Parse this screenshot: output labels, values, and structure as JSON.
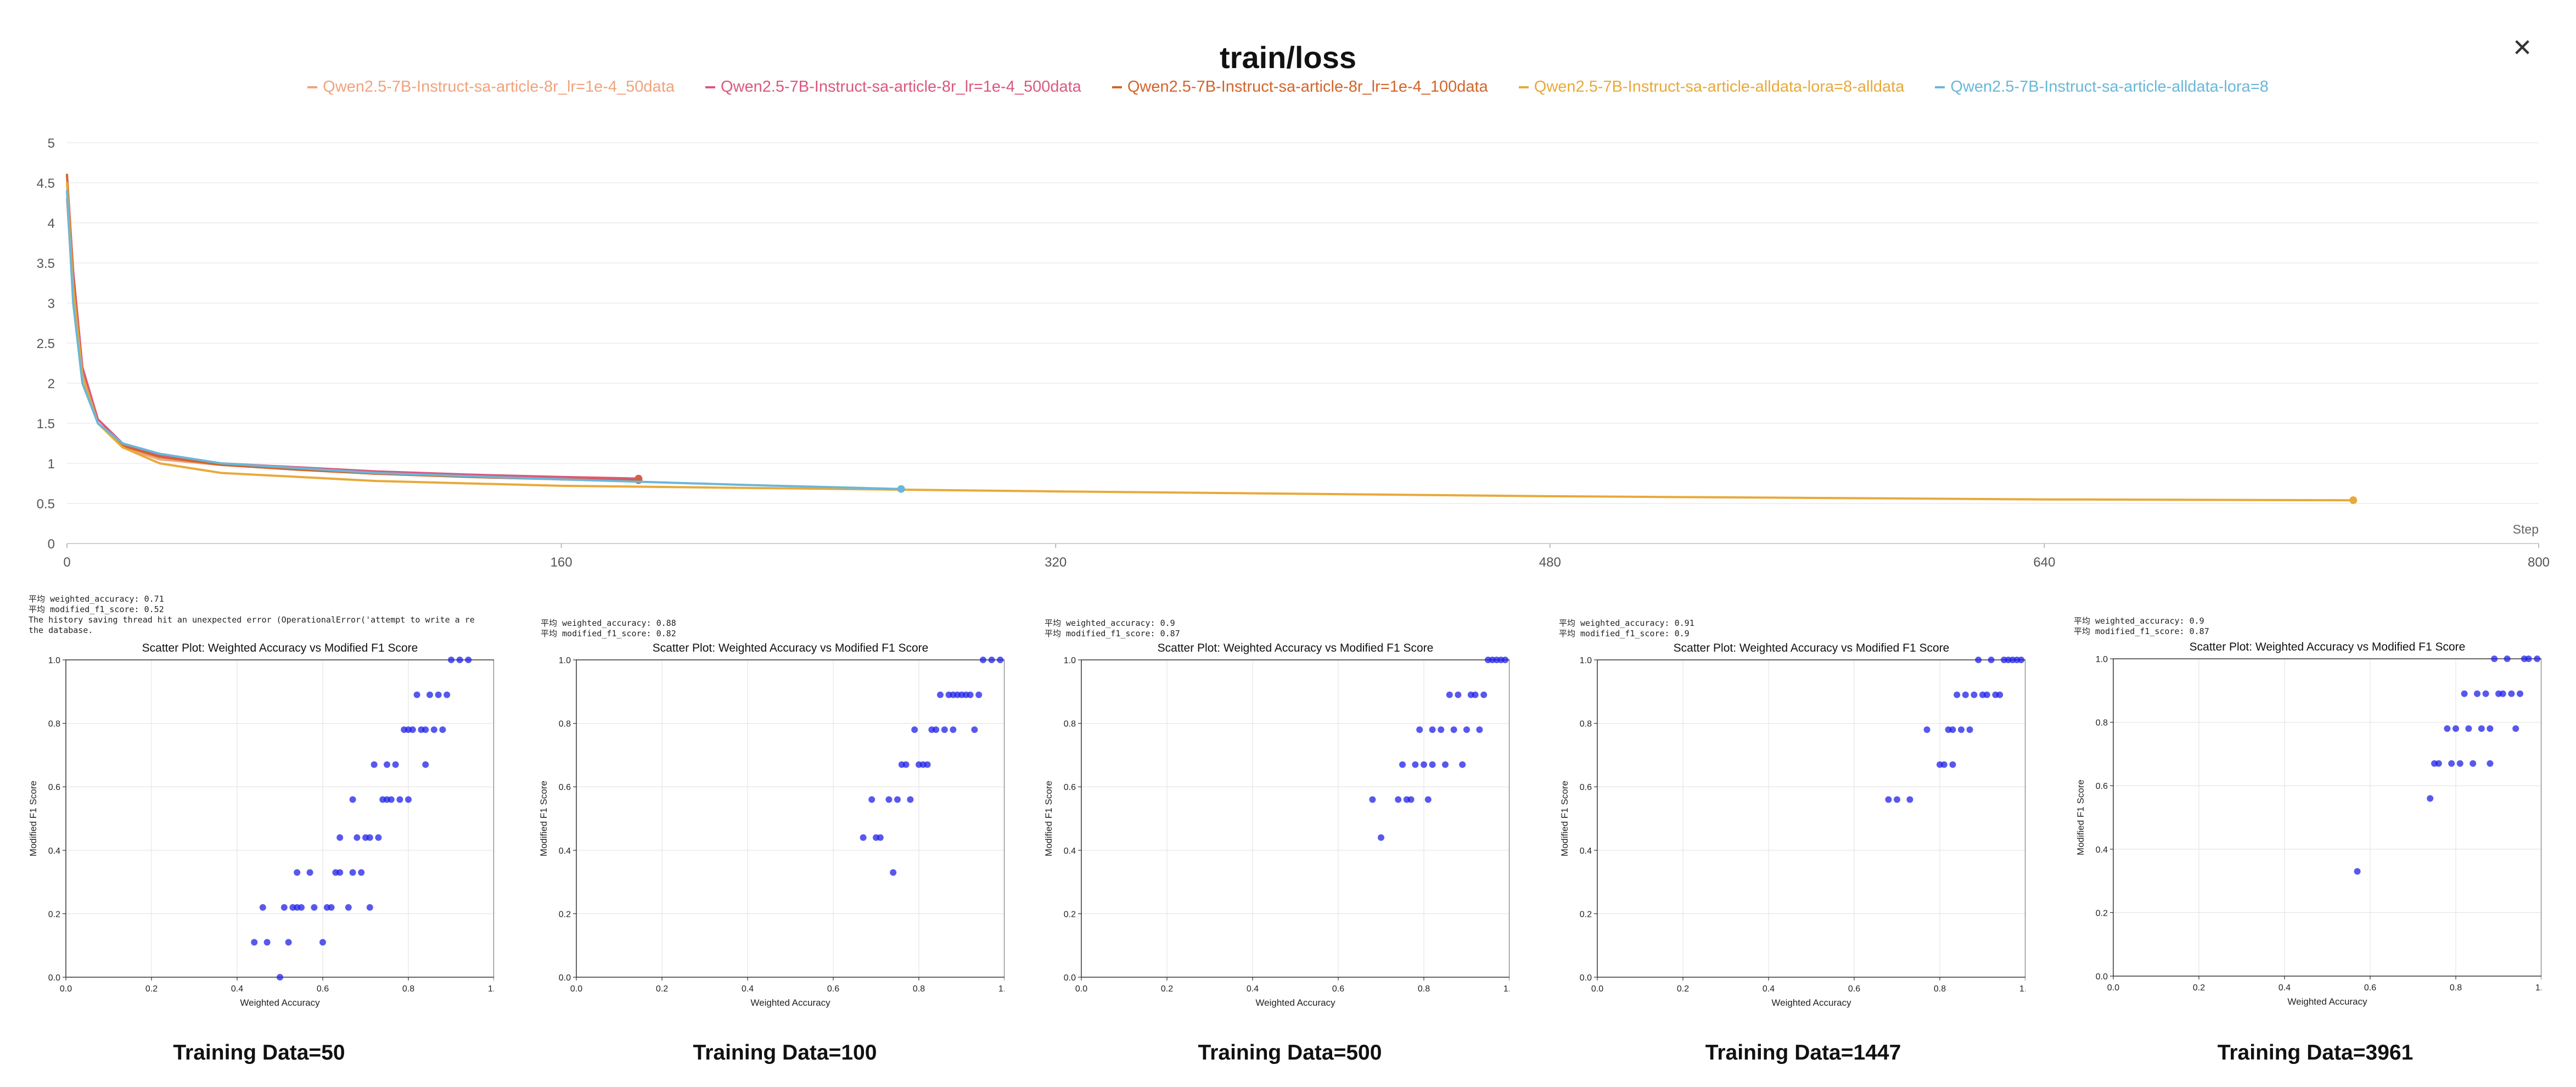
{
  "header": {
    "title": "train/loss",
    "close_icon": "close-icon"
  },
  "legend": [
    {
      "label": "Qwen2.5-7B-Instruct-sa-article-8r_lr=1e-4_50data",
      "color": "#f0a37c"
    },
    {
      "label": "Qwen2.5-7B-Instruct-sa-article-8r_lr=1e-4_500data",
      "color": "#d9597e"
    },
    {
      "label": "Qwen2.5-7B-Instruct-sa-article-8r_lr=1e-4_100data",
      "color": "#d2652b"
    },
    {
      "label": "Qwen2.5-7B-Instruct-sa-article-alldata-lora=8-alldata",
      "color": "#e8a93a"
    },
    {
      "label": "Qwen2.5-7B-Instruct-sa-article-alldata-lora=8",
      "color": "#6ab7d8"
    }
  ],
  "chart_data": [
    {
      "type": "line",
      "title": "train/loss",
      "xlabel": "Step",
      "ylabel": "",
      "xlim": [
        0,
        800
      ],
      "ylim": [
        0,
        5
      ],
      "xticks": [
        "0",
        "160",
        "320",
        "480",
        "640",
        "800"
      ],
      "yticks": [
        "0",
        "0.5",
        "1",
        "1.5",
        "2",
        "2.5",
        "3",
        "3.5",
        "4",
        "4.5",
        "5"
      ],
      "grid": true,
      "legend_position": "top",
      "series": [
        {
          "name": "Qwen2.5-7B-Instruct-sa-article-8r_lr=1e-4_50data",
          "color": "#f0a37c",
          "x": [
            0,
            2,
            5,
            10,
            18,
            30,
            50,
            75,
            100,
            130,
            160,
            185
          ],
          "y": [
            4.3,
            3.1,
            2.1,
            1.5,
            1.2,
            1.05,
            0.98,
            0.93,
            0.88,
            0.84,
            0.82,
            0.8
          ]
        },
        {
          "name": "Qwen2.5-7B-Instruct-sa-article-8r_lr=1e-4_500data",
          "color": "#d9597e",
          "x": [
            0,
            2,
            5,
            10,
            18,
            30,
            50,
            75,
            100,
            130,
            160,
            185
          ],
          "y": [
            4.6,
            3.4,
            2.2,
            1.55,
            1.25,
            1.1,
            1.0,
            0.95,
            0.9,
            0.86,
            0.83,
            0.81
          ]
        },
        {
          "name": "Qwen2.5-7B-Instruct-sa-article-8r_lr=1e-4_100data",
          "color": "#d2652b",
          "x": [
            0,
            2,
            5,
            10,
            18,
            30,
            50,
            75,
            100,
            130,
            160,
            185
          ],
          "y": [
            4.6,
            3.3,
            2.1,
            1.5,
            1.22,
            1.08,
            0.98,
            0.92,
            0.87,
            0.83,
            0.8,
            0.79
          ]
        },
        {
          "name": "Qwen2.5-7B-Instruct-sa-article-alldata-lora=8-alldata",
          "color": "#e8a93a",
          "x": [
            0,
            2,
            5,
            10,
            18,
            30,
            50,
            100,
            160,
            250,
            320,
            400,
            480,
            560,
            640,
            740
          ],
          "y": [
            4.5,
            3.2,
            2.1,
            1.5,
            1.2,
            1.0,
            0.88,
            0.78,
            0.72,
            0.68,
            0.65,
            0.62,
            0.59,
            0.57,
            0.55,
            0.54
          ]
        },
        {
          "name": "Qwen2.5-7B-Instruct-sa-article-alldata-lora=8",
          "color": "#6ab7d8",
          "x": [
            0,
            2,
            5,
            10,
            18,
            30,
            50,
            100,
            160,
            220,
            270
          ],
          "y": [
            4.4,
            3.0,
            2.0,
            1.5,
            1.25,
            1.12,
            1.0,
            0.88,
            0.8,
            0.73,
            0.68
          ]
        }
      ]
    },
    {
      "type": "scatter",
      "title": "Scatter Plot: Weighted Accuracy vs Modified F1 Score",
      "xlabel": "Weighted Accuracy",
      "ylabel": "Modified F1 Score",
      "xlim": [
        0,
        1
      ],
      "ylim": [
        0,
        1
      ],
      "xticks": [
        "0.0",
        "0.2",
        "0.4",
        "0.6",
        "0.8",
        "1.0"
      ],
      "yticks": [
        "0.0",
        "0.2",
        "0.4",
        "0.6",
        "0.8",
        "1.0"
      ],
      "grid": true,
      "points": [
        [
          0.44,
          0.11
        ],
        [
          0.46,
          0.22
        ],
        [
          0.47,
          0.11
        ],
        [
          0.5,
          0.0
        ],
        [
          0.51,
          0.22
        ],
        [
          0.52,
          0.11
        ],
        [
          0.53,
          0.22
        ],
        [
          0.54,
          0.33
        ],
        [
          0.54,
          0.22
        ],
        [
          0.55,
          0.22
        ],
        [
          0.57,
          0.33
        ],
        [
          0.58,
          0.22
        ],
        [
          0.6,
          0.11
        ],
        [
          0.61,
          0.22
        ],
        [
          0.62,
          0.22
        ],
        [
          0.63,
          0.33
        ],
        [
          0.64,
          0.44
        ],
        [
          0.64,
          0.33
        ],
        [
          0.66,
          0.22
        ],
        [
          0.67,
          0.33
        ],
        [
          0.67,
          0.56
        ],
        [
          0.68,
          0.44
        ],
        [
          0.69,
          0.33
        ],
        [
          0.7,
          0.44
        ],
        [
          0.71,
          0.22
        ],
        [
          0.71,
          0.44
        ],
        [
          0.72,
          0.67
        ],
        [
          0.73,
          0.44
        ],
        [
          0.74,
          0.56
        ],
        [
          0.75,
          0.56
        ],
        [
          0.75,
          0.67
        ],
        [
          0.76,
          0.56
        ],
        [
          0.77,
          0.67
        ],
        [
          0.78,
          0.56
        ],
        [
          0.79,
          0.78
        ],
        [
          0.8,
          0.78
        ],
        [
          0.8,
          0.56
        ],
        [
          0.81,
          0.78
        ],
        [
          0.82,
          0.89
        ],
        [
          0.83,
          0.78
        ],
        [
          0.84,
          0.78
        ],
        [
          0.84,
          0.67
        ],
        [
          0.85,
          0.89
        ],
        [
          0.86,
          0.78
        ],
        [
          0.87,
          0.89
        ],
        [
          0.88,
          0.78
        ],
        [
          0.89,
          0.89
        ],
        [
          0.9,
          1.0
        ],
        [
          0.92,
          1.0
        ],
        [
          0.94,
          1.0
        ]
      ],
      "stats_text": "平均 weighted_accuracy: 0.71\n平均 modified_f1_score: 0.52\nThe history saving thread hit an unexpected error (OperationalError('attempt to write a re\nthe database.",
      "caption": "Training Data=50"
    },
    {
      "type": "scatter",
      "title": "Scatter Plot: Weighted Accuracy vs Modified F1 Score",
      "xlabel": "Weighted Accuracy",
      "ylabel": "Modified F1 Score",
      "xlim": [
        0,
        1
      ],
      "ylim": [
        0,
        1
      ],
      "xticks": [
        "0.0",
        "0.2",
        "0.4",
        "0.6",
        "0.8",
        "1.0"
      ],
      "yticks": [
        "0.0",
        "0.2",
        "0.4",
        "0.6",
        "0.8",
        "1.0"
      ],
      "grid": true,
      "points": [
        [
          0.67,
          0.44
        ],
        [
          0.69,
          0.56
        ],
        [
          0.7,
          0.44
        ],
        [
          0.71,
          0.44
        ],
        [
          0.73,
          0.56
        ],
        [
          0.74,
          0.33
        ],
        [
          0.75,
          0.56
        ],
        [
          0.76,
          0.67
        ],
        [
          0.77,
          0.67
        ],
        [
          0.78,
          0.56
        ],
        [
          0.79,
          0.78
        ],
        [
          0.8,
          0.67
        ],
        [
          0.81,
          0.67
        ],
        [
          0.82,
          0.67
        ],
        [
          0.83,
          0.78
        ],
        [
          0.84,
          0.78
        ],
        [
          0.85,
          0.89
        ],
        [
          0.86,
          0.78
        ],
        [
          0.87,
          0.89
        ],
        [
          0.88,
          0.78
        ],
        [
          0.88,
          0.89
        ],
        [
          0.89,
          0.89
        ],
        [
          0.9,
          0.89
        ],
        [
          0.91,
          0.89
        ],
        [
          0.92,
          0.89
        ],
        [
          0.93,
          0.78
        ],
        [
          0.94,
          0.89
        ],
        [
          0.95,
          1.0
        ],
        [
          0.97,
          1.0
        ],
        [
          0.99,
          1.0
        ]
      ],
      "stats_text": "平均 weighted_accuracy: 0.88\n平均 modified_f1_score: 0.82",
      "caption": "Training Data=100"
    },
    {
      "type": "scatter",
      "title": "Scatter Plot: Weighted Accuracy vs Modified F1 Score",
      "xlabel": "Weighted Accuracy",
      "ylabel": "Modified F1 Score",
      "xlim": [
        0,
        1
      ],
      "ylim": [
        0,
        1
      ],
      "xticks": [
        "0.0",
        "0.2",
        "0.4",
        "0.6",
        "0.8",
        "1.0"
      ],
      "yticks": [
        "0.0",
        "0.2",
        "0.4",
        "0.6",
        "0.8",
        "1.0"
      ],
      "grid": true,
      "points": [
        [
          0.68,
          0.56
        ],
        [
          0.7,
          0.44
        ],
        [
          0.74,
          0.56
        ],
        [
          0.75,
          0.67
        ],
        [
          0.76,
          0.56
        ],
        [
          0.77,
          0.56
        ],
        [
          0.78,
          0.67
        ],
        [
          0.79,
          0.78
        ],
        [
          0.8,
          0.67
        ],
        [
          0.81,
          0.56
        ],
        [
          0.82,
          0.67
        ],
        [
          0.82,
          0.78
        ],
        [
          0.84,
          0.78
        ],
        [
          0.85,
          0.67
        ],
        [
          0.86,
          0.89
        ],
        [
          0.87,
          0.78
        ],
        [
          0.88,
          0.89
        ],
        [
          0.89,
          0.67
        ],
        [
          0.9,
          0.78
        ],
        [
          0.91,
          0.89
        ],
        [
          0.92,
          0.89
        ],
        [
          0.93,
          0.78
        ],
        [
          0.94,
          0.89
        ],
        [
          0.95,
          1.0
        ],
        [
          0.96,
          1.0
        ],
        [
          0.97,
          1.0
        ],
        [
          0.98,
          1.0
        ],
        [
          0.99,
          1.0
        ]
      ],
      "stats_text": "平均 weighted_accuracy: 0.9\n平均 modified_f1_score: 0.87",
      "caption": "Training Data=500"
    },
    {
      "type": "scatter",
      "title": "Scatter Plot: Weighted Accuracy vs Modified F1 Score",
      "xlabel": "Weighted Accuracy",
      "ylabel": "Modified F1 Score",
      "xlim": [
        0,
        1
      ],
      "ylim": [
        0,
        1
      ],
      "xticks": [
        "0.0",
        "0.2",
        "0.4",
        "0.6",
        "0.8",
        "1.0"
      ],
      "yticks": [
        "0.0",
        "0.2",
        "0.4",
        "0.6",
        "0.8",
        "1.0"
      ],
      "grid": true,
      "points": [
        [
          0.68,
          0.56
        ],
        [
          0.7,
          0.56
        ],
        [
          0.73,
          0.56
        ],
        [
          0.77,
          0.78
        ],
        [
          0.8,
          0.67
        ],
        [
          0.81,
          0.67
        ],
        [
          0.82,
          0.78
        ],
        [
          0.83,
          0.67
        ],
        [
          0.83,
          0.78
        ],
        [
          0.84,
          0.89
        ],
        [
          0.85,
          0.78
        ],
        [
          0.86,
          0.89
        ],
        [
          0.87,
          0.78
        ],
        [
          0.88,
          0.89
        ],
        [
          0.89,
          1.0
        ],
        [
          0.9,
          0.89
        ],
        [
          0.91,
          0.89
        ],
        [
          0.92,
          1.0
        ],
        [
          0.93,
          0.89
        ],
        [
          0.94,
          0.89
        ],
        [
          0.95,
          1.0
        ],
        [
          0.96,
          1.0
        ],
        [
          0.97,
          1.0
        ],
        [
          0.98,
          1.0
        ],
        [
          0.99,
          1.0
        ]
      ],
      "stats_text": "平均 weighted_accuracy: 0.91\n平均 modified_f1_score: 0.9",
      "caption": "Training Data=1447"
    },
    {
      "type": "scatter",
      "title": "Scatter Plot: Weighted Accuracy vs Modified F1 Score",
      "xlabel": "Weighted Accuracy",
      "ylabel": "Modified F1 Score",
      "xlim": [
        0,
        1
      ],
      "ylim": [
        0,
        1
      ],
      "xticks": [
        "0.0",
        "0.2",
        "0.4",
        "0.6",
        "0.8",
        "1.0"
      ],
      "yticks": [
        "0.0",
        "0.2",
        "0.4",
        "0.6",
        "0.8",
        "1.0"
      ],
      "grid": true,
      "points": [
        [
          0.57,
          0.33
        ],
        [
          0.74,
          0.56
        ],
        [
          0.75,
          0.67
        ],
        [
          0.76,
          0.67
        ],
        [
          0.78,
          0.78
        ],
        [
          0.79,
          0.67
        ],
        [
          0.8,
          0.78
        ],
        [
          0.81,
          0.67
        ],
        [
          0.82,
          0.89
        ],
        [
          0.83,
          0.78
        ],
        [
          0.84,
          0.67
        ],
        [
          0.85,
          0.89
        ],
        [
          0.86,
          0.78
        ],
        [
          0.87,
          0.89
        ],
        [
          0.88,
          0.67
        ],
        [
          0.88,
          0.78
        ],
        [
          0.89,
          1.0
        ],
        [
          0.9,
          0.89
        ],
        [
          0.91,
          0.89
        ],
        [
          0.92,
          1.0
        ],
        [
          0.93,
          0.89
        ],
        [
          0.94,
          0.78
        ],
        [
          0.95,
          0.89
        ],
        [
          0.96,
          1.0
        ],
        [
          0.97,
          1.0
        ],
        [
          0.99,
          1.0
        ]
      ],
      "stats_text": "平均 weighted_accuracy: 0.9\n平均 modified_f1_score: 0.87",
      "caption": "Training Data=3961"
    }
  ]
}
